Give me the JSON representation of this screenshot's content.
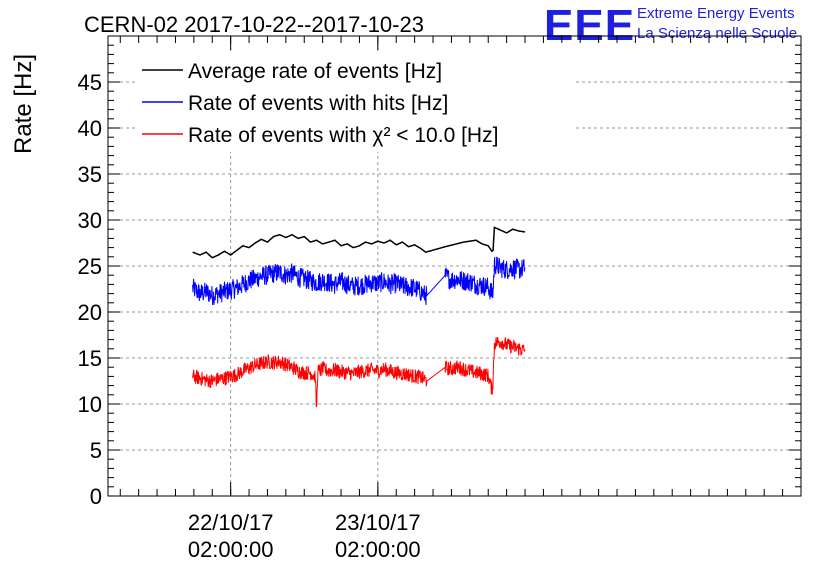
{
  "chart_data": {
    "type": "line",
    "title": "CERN-02 2017-10-22--2017-10-23",
    "ylabel": "Rate [Hz]",
    "xlabel": "",
    "ylim": [
      0,
      50
    ],
    "yticks": [
      0,
      5,
      10,
      15,
      20,
      25,
      30,
      35,
      40,
      45
    ],
    "x_unit": "hours from 2017-10-22 00:00",
    "xlim": [
      -18.0,
      95.0
    ],
    "xticks": [
      {
        "date": "22/10/17",
        "time": "02:00:00",
        "x": 2.0
      },
      {
        "date": "23/10/17",
        "time": "02:00:00",
        "x": 26.0
      }
    ],
    "grid": true,
    "legend_position": "top-left",
    "series": [
      {
        "name": "Average rate of events [Hz]",
        "color": "#000000",
        "noise": 0.0,
        "points": [
          [
            -4.2,
            26.5
          ],
          [
            -3,
            26.2
          ],
          [
            -2,
            26.5
          ],
          [
            -1,
            25.9
          ],
          [
            0,
            26.2
          ],
          [
            1,
            26.6
          ],
          [
            2,
            26.2
          ],
          [
            3,
            26.7
          ],
          [
            4,
            27.2
          ],
          [
            5,
            27.0
          ],
          [
            6,
            27.5
          ],
          [
            7,
            27.9
          ],
          [
            8,
            27.6
          ],
          [
            9,
            28.2
          ],
          [
            10,
            28.4
          ],
          [
            11,
            28.1
          ],
          [
            12,
            28.4
          ],
          [
            13,
            28.0
          ],
          [
            14,
            28.2
          ],
          [
            15,
            27.6
          ],
          [
            16,
            27.8
          ],
          [
            17,
            27.4
          ],
          [
            18,
            27.6
          ],
          [
            19,
            27.8
          ],
          [
            20,
            27.2
          ],
          [
            21,
            27.4
          ],
          [
            22,
            27.0
          ],
          [
            23,
            27.2
          ],
          [
            24,
            27.6
          ],
          [
            25,
            27.4
          ],
          [
            26,
            27.7
          ],
          [
            27,
            27.5
          ],
          [
            28,
            27.8
          ],
          [
            29,
            27.3
          ],
          [
            30,
            27.6
          ],
          [
            31,
            27.1
          ],
          [
            32,
            27.3
          ],
          [
            33,
            26.9
          ],
          [
            33.8,
            26.5
          ],
          [
            37,
            27.1
          ],
          [
            40,
            27.6
          ],
          [
            42,
            27.8
          ],
          [
            43,
            27.4
          ],
          [
            44,
            27.2
          ],
          [
            44.6,
            26.6
          ],
          [
            44.8,
            26.7
          ],
          [
            45.0,
            29.2
          ],
          [
            46,
            28.9
          ],
          [
            47,
            28.6
          ],
          [
            48,
            29.0
          ],
          [
            49,
            28.8
          ],
          [
            50,
            28.7
          ]
        ]
      },
      {
        "name": "Rate of events with hits [Hz]",
        "color": "#0000ff",
        "noise": 1.1,
        "points": [
          [
            -4.2,
            22.6
          ],
          [
            -3,
            22.0
          ],
          [
            -2,
            22.2
          ],
          [
            -1,
            21.8
          ],
          [
            0,
            22.0
          ],
          [
            1,
            22.2
          ],
          [
            2,
            22.4
          ],
          [
            3,
            22.6
          ],
          [
            4,
            23.0
          ],
          [
            5,
            23.4
          ],
          [
            6,
            23.6
          ],
          [
            7,
            23.9
          ],
          [
            8,
            24.0
          ],
          [
            9,
            24.2
          ],
          [
            10,
            24.3
          ],
          [
            11,
            24.0
          ],
          [
            12,
            24.2
          ],
          [
            13,
            23.8
          ],
          [
            14,
            23.6
          ],
          [
            15,
            23.4
          ],
          [
            16,
            23.2
          ],
          [
            17,
            23.4
          ],
          [
            18,
            23.2
          ],
          [
            19,
            23.0
          ],
          [
            20,
            23.3
          ],
          [
            21,
            23.0
          ],
          [
            22,
            22.8
          ],
          [
            23,
            22.9
          ],
          [
            24,
            23.0
          ],
          [
            25,
            23.2
          ],
          [
            26,
            23.1
          ],
          [
            27,
            23.3
          ],
          [
            28,
            23.0
          ],
          [
            29,
            23.1
          ],
          [
            30,
            22.8
          ],
          [
            31,
            22.7
          ],
          [
            32,
            22.6
          ],
          [
            33,
            22.2
          ],
          [
            33.8,
            21.8
          ],
          [
            34.0,
            21.8
          ],
          [
            37,
            24.0
          ],
          [
            37.2,
            23.8
          ],
          [
            38,
            23.5
          ],
          [
            39,
            23.6
          ],
          [
            40,
            23.4
          ],
          [
            41,
            23.3
          ],
          [
            42,
            23.0
          ],
          [
            43,
            22.9
          ],
          [
            44,
            22.7
          ],
          [
            44.6,
            22.0
          ],
          [
            44.8,
            22.2
          ],
          [
            45.0,
            25.2
          ],
          [
            46,
            24.8
          ],
          [
            47,
            24.6
          ],
          [
            48,
            24.8
          ],
          [
            49,
            24.6
          ],
          [
            50,
            24.8
          ]
        ]
      },
      {
        "name": "Rate of events with χ² < 10.0 [Hz]",
        "color": "#ff0000",
        "noise": 0.8,
        "points": [
          [
            -4.2,
            13.0
          ],
          [
            -3,
            12.8
          ],
          [
            -2,
            12.6
          ],
          [
            -1,
            12.5
          ],
          [
            0,
            12.7
          ],
          [
            1,
            12.8
          ],
          [
            2,
            13.0
          ],
          [
            3,
            13.2
          ],
          [
            4,
            13.6
          ],
          [
            5,
            13.9
          ],
          [
            6,
            14.2
          ],
          [
            7,
            14.4
          ],
          [
            8,
            14.6
          ],
          [
            9,
            14.5
          ],
          [
            10,
            14.6
          ],
          [
            11,
            14.3
          ],
          [
            12,
            14.0
          ],
          [
            13,
            13.6
          ],
          [
            14,
            13.4
          ],
          [
            15,
            13.4
          ],
          [
            15.8,
            13.0
          ],
          [
            16.0,
            9.2
          ],
          [
            16.2,
            13.5
          ],
          [
            17,
            13.8
          ],
          [
            18,
            13.6
          ],
          [
            19,
            13.7
          ],
          [
            20,
            13.5
          ],
          [
            21,
            13.4
          ],
          [
            22,
            13.3
          ],
          [
            23,
            13.5
          ],
          [
            24,
            13.6
          ],
          [
            25,
            13.7
          ],
          [
            26,
            13.6
          ],
          [
            27,
            13.8
          ],
          [
            28,
            13.6
          ],
          [
            29,
            13.4
          ],
          [
            30,
            13.3
          ],
          [
            31,
            13.2
          ],
          [
            32,
            13.0
          ],
          [
            33,
            12.9
          ],
          [
            33.8,
            12.6
          ],
          [
            34.0,
            12.5
          ],
          [
            37,
            14.0
          ],
          [
            37.2,
            13.9
          ],
          [
            38,
            13.8
          ],
          [
            39,
            14.0
          ],
          [
            40,
            13.8
          ],
          [
            41,
            13.6
          ],
          [
            42,
            13.4
          ],
          [
            43,
            13.3
          ],
          [
            44,
            13.1
          ],
          [
            44.6,
            11.5
          ],
          [
            44.8,
            12.6
          ],
          [
            45.0,
            16.6
          ],
          [
            46,
            16.8
          ],
          [
            47,
            16.4
          ],
          [
            48,
            16.2
          ],
          [
            49,
            16.0
          ],
          [
            50,
            15.8
          ]
        ]
      }
    ]
  },
  "logo": {
    "mark": "EEE",
    "line1": "Extreme Energy Events",
    "line2": "La Scienza nelle Scuole"
  }
}
